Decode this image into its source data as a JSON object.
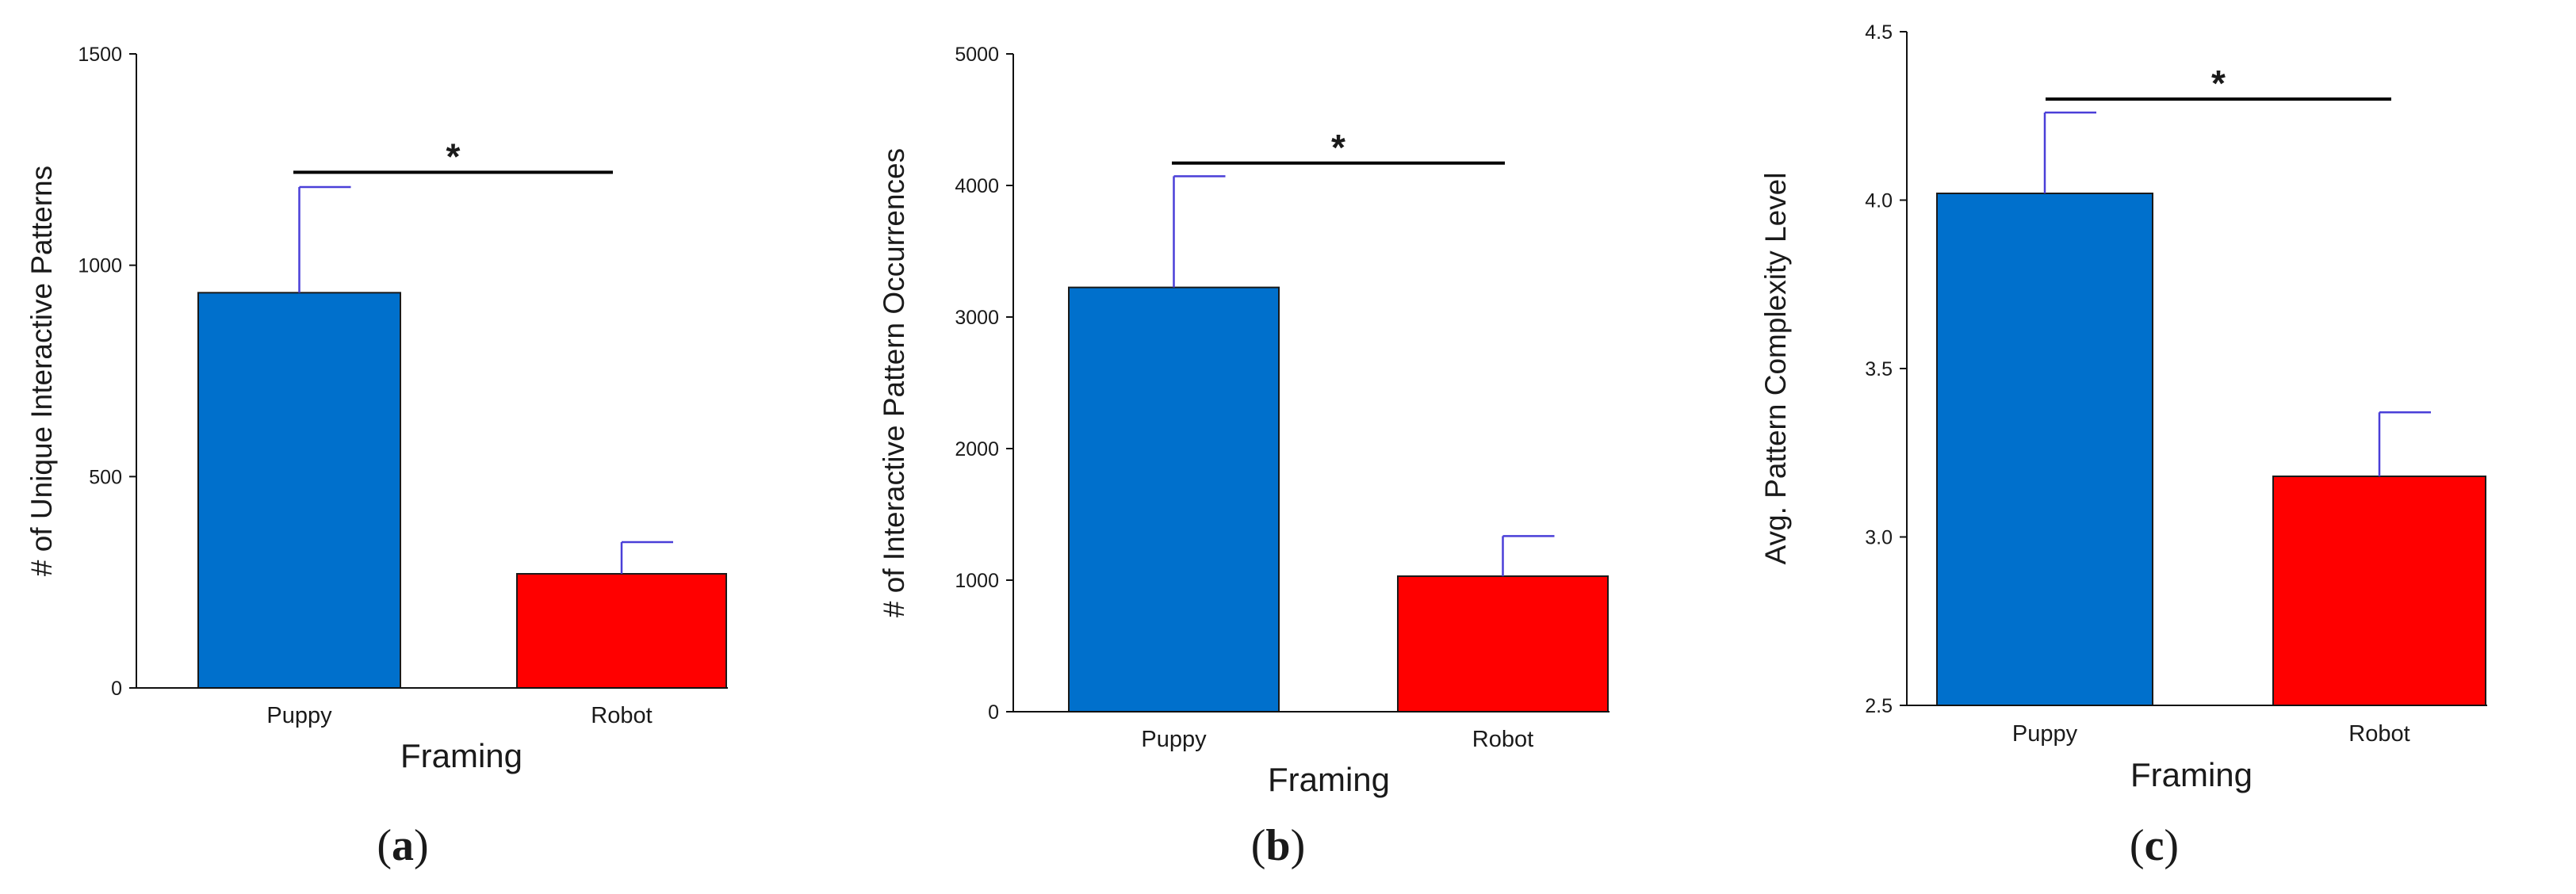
{
  "figure": {
    "panels": [
      {
        "label_open": "(",
        "label_letter": "a",
        "label_close": ")"
      },
      {
        "label_open": "(",
        "label_letter": "b",
        "label_close": ")"
      },
      {
        "label_open": "(",
        "label_letter": "c",
        "label_close": ")"
      }
    ]
  },
  "colors": {
    "puppy": "#0070cc",
    "robot": "#ff0000",
    "error_bar": "#4a3fd8",
    "axis": "#111111"
  },
  "chart_data": [
    {
      "type": "bar",
      "panel": "a",
      "title": "",
      "categories": [
        "Puppy",
        "Robot"
      ],
      "values": [
        935,
        270
      ],
      "errors": [
        250,
        75
      ],
      "xlabel": "Framing",
      "ylabel": "# of Unique Interactive Patterns",
      "ylim": [
        0,
        1500
      ],
      "yticks": [
        0,
        500,
        1000,
        1500
      ],
      "tick_labels": [
        "0",
        "500",
        "1000",
        "1500"
      ],
      "significance": {
        "marker": "*",
        "y": 1220
      }
    },
    {
      "type": "bar",
      "panel": "b",
      "title": "",
      "categories": [
        "Puppy",
        "Robot"
      ],
      "values": [
        3225,
        1030
      ],
      "errors": [
        845,
        305
      ],
      "xlabel": "Framing",
      "ylabel": "# of Interactive Pattern Occurrences",
      "ylim": [
        0,
        5000
      ],
      "yticks": [
        0,
        1000,
        2000,
        3000,
        4000,
        5000
      ],
      "tick_labels": [
        "0",
        "1000",
        "2000",
        "3000",
        "4000",
        "5000"
      ],
      "significance": {
        "marker": "*",
        "y": 4170
      }
    },
    {
      "type": "bar",
      "panel": "c",
      "title": "",
      "categories": [
        "Puppy",
        "Robot"
      ],
      "values": [
        4.02,
        3.18
      ],
      "errors": [
        0.24,
        0.19
      ],
      "xlabel": "Framing",
      "ylabel": "Avg. Pattern Complexity Level",
      "ylim": [
        2.5,
        4.5
      ],
      "yticks": [
        2.5,
        3.0,
        3.5,
        4.0,
        4.5
      ],
      "tick_labels": [
        "2.5",
        "3.0",
        "3.5",
        "4.0",
        "4.5"
      ],
      "significance": {
        "marker": "*",
        "y": 4.3
      }
    }
  ]
}
